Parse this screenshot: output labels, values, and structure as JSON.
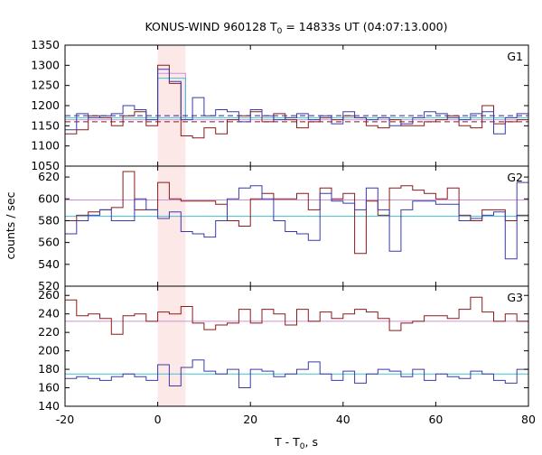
{
  "chart_data": {
    "type": "line",
    "title_prefix": "KONUS-WIND 960128 T",
    "title_sub": "0",
    "title_suffix": " = 14833s UT (04:07:13.000)",
    "xlabel_prefix": "T - T",
    "xlabel_sub": "0",
    "xlabel_suffix": ", s",
    "ylabel": "counts / sec",
    "xlim": [
      -20,
      80
    ],
    "xticks": [
      -20,
      0,
      20,
      40,
      60,
      80
    ],
    "highlight": {
      "from": 0,
      "to": 6,
      "color": "#fde8e8"
    },
    "colors": {
      "red": "#8b1a1a",
      "blue": "#3a3aaa",
      "cyan": "#40c0d0",
      "violet": "#d090d8",
      "dash_red": "#7a2020",
      "dash_blue": "#2a2aa0"
    },
    "panels": [
      {
        "name": "G1",
        "ylim": [
          1050,
          1350
        ],
        "yticks": [
          1050,
          1100,
          1150,
          1200,
          1250,
          1300,
          1350
        ],
        "dash_levels": [
          1160,
          1175
        ],
        "cyan_level": 1170,
        "violet_level": 1165,
        "violet_peak": [
          0,
          6,
          1280
        ],
        "cyan_peak": [
          0,
          6,
          1268
        ],
        "red": [
          1130,
          1140,
          1175,
          1170,
          1150,
          1175,
          1185,
          1150,
          1300,
          1255,
          1125,
          1120,
          1145,
          1130,
          1165,
          1175,
          1185,
          1160,
          1180,
          1165,
          1145,
          1160,
          1170,
          1165,
          1175,
          1170,
          1150,
          1145,
          1165,
          1150,
          1150,
          1160,
          1165,
          1175,
          1150,
          1145,
          1200,
          1155,
          1160,
          1165
        ],
        "blue": [
          1140,
          1180,
          1170,
          1175,
          1180,
          1200,
          1190,
          1165,
          1290,
          1260,
          1165,
          1220,
          1175,
          1190,
          1185,
          1160,
          1190,
          1175,
          1165,
          1170,
          1180,
          1165,
          1175,
          1155,
          1185,
          1170,
          1165,
          1170,
          1150,
          1155,
          1170,
          1185,
          1180,
          1170,
          1165,
          1180,
          1185,
          1130,
          1170,
          1180
        ]
      },
      {
        "name": "G2",
        "ylim": [
          520,
          630
        ],
        "yticks": [
          520,
          540,
          560,
          580,
          600,
          620
        ],
        "cyan_level": 584,
        "violet_level": 599,
        "red": [
          580,
          585,
          588,
          590,
          592,
          625,
          590,
          590,
          615,
          600,
          598,
          598,
          598,
          595,
          580,
          575,
          600,
          605,
          600,
          600,
          605,
          590,
          610,
          600,
          605,
          550,
          598,
          585,
          610,
          612,
          608,
          605,
          600,
          610,
          585,
          580,
          590,
          590,
          580,
          585
        ],
        "blue": [
          568,
          580,
          585,
          590,
          580,
          580,
          600,
          590,
          582,
          588,
          570,
          568,
          565,
          580,
          600,
          610,
          612,
          600,
          580,
          570,
          568,
          562,
          605,
          598,
          596,
          590,
          610,
          590,
          552,
          590,
          598,
          598,
          595,
          595,
          580,
          582,
          585,
          588,
          545,
          615
        ]
      },
      {
        "name": "G3",
        "ylim": [
          140,
          270
        ],
        "yticks": [
          140,
          160,
          180,
          200,
          220,
          240,
          260
        ],
        "cyan_level": 175,
        "violet_level": 232,
        "red": [
          255,
          238,
          240,
          235,
          218,
          238,
          240,
          232,
          242,
          240,
          248,
          230,
          223,
          228,
          230,
          245,
          230,
          245,
          240,
          228,
          245,
          232,
          242,
          235,
          240,
          245,
          242,
          235,
          222,
          230,
          232,
          238,
          238,
          235,
          245,
          258,
          242,
          232,
          240,
          232
        ],
        "blue": [
          170,
          172,
          170,
          168,
          172,
          175,
          172,
          168,
          185,
          162,
          182,
          190,
          178,
          175,
          180,
          160,
          180,
          178,
          172,
          175,
          180,
          188,
          175,
          168,
          178,
          165,
          175,
          180,
          178,
          172,
          180,
          168,
          175,
          172,
          170,
          178,
          175,
          168,
          165,
          180
        ]
      }
    ]
  }
}
